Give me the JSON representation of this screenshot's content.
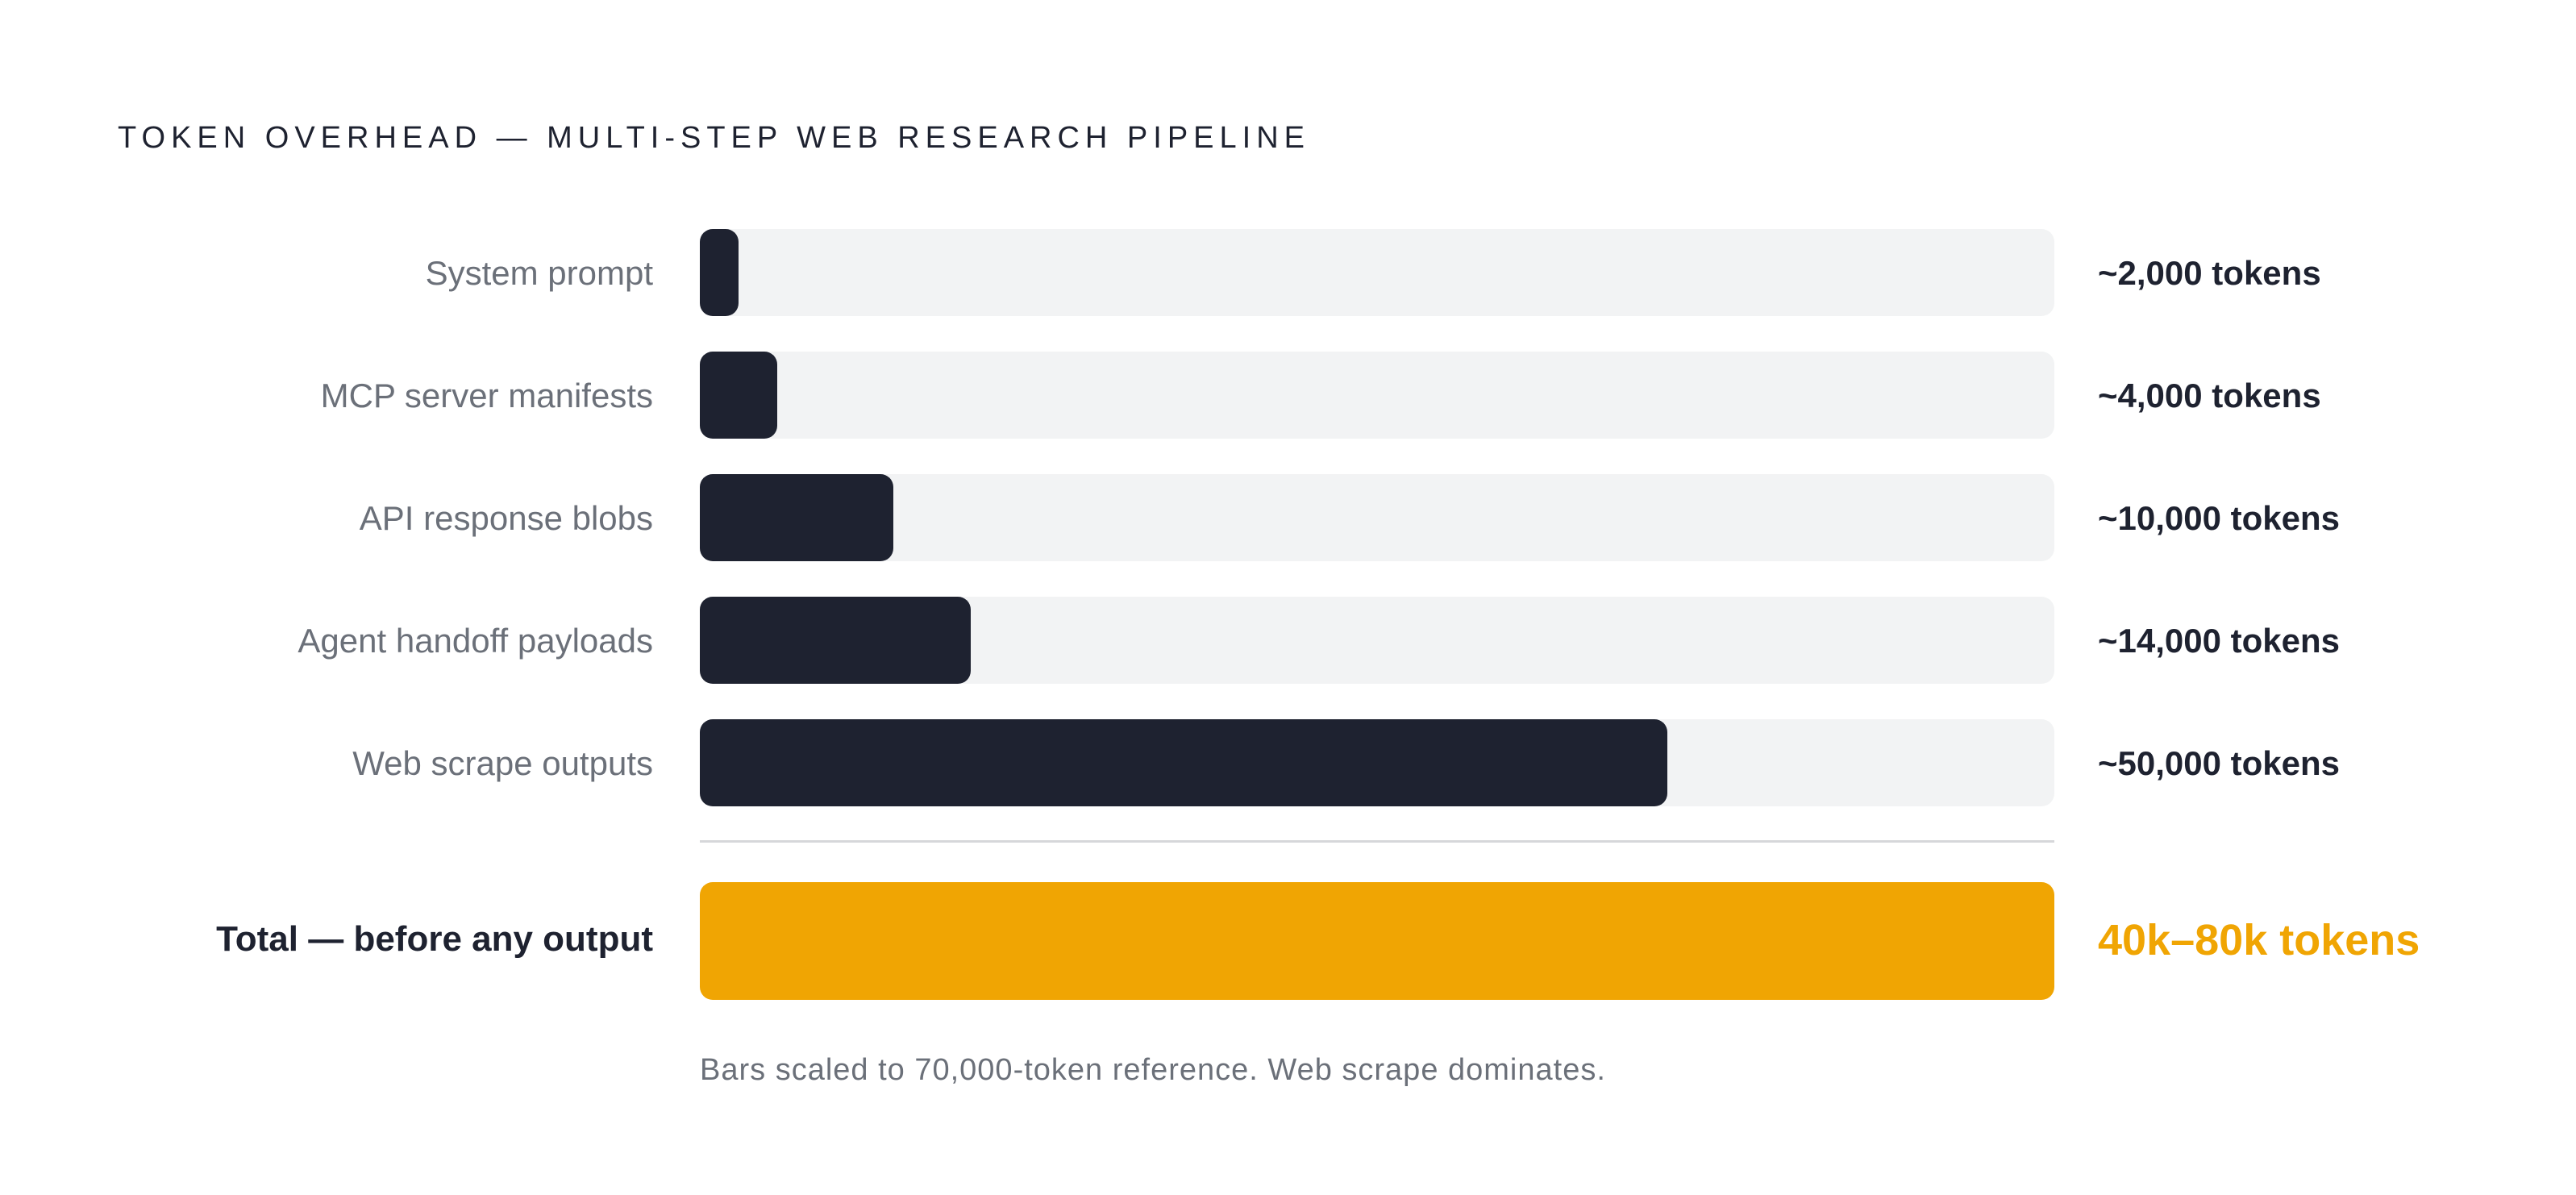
{
  "chart_data": {
    "type": "bar",
    "orientation": "horizontal",
    "title": "TOKEN OVERHEAD — MULTI-STEP WEB RESEARCH PIPELINE",
    "categories": [
      "System prompt",
      "MCP server manifests",
      "API response blobs",
      "Agent handoff payloads",
      "Web scrape outputs"
    ],
    "values": [
      2000,
      4000,
      10000,
      14000,
      50000
    ],
    "value_labels": [
      "~2,000 tokens",
      "~4,000 tokens",
      "~10,000 tokens",
      "~14,000 tokens",
      "~50,000 tokens"
    ],
    "xlim": [
      0,
      70000
    ],
    "grid": false,
    "legend": "none",
    "total": {
      "label": "Total — before any output",
      "value_label": "40k–80k tokens"
    },
    "footnote": "Bars scaled to 70,000-token reference. Web scrape dominates."
  },
  "colors": {
    "bar": "#1e2230",
    "track": "#f2f3f4",
    "accent": "#f0a503",
    "label": "#6b7079",
    "text": "#1e2230"
  }
}
